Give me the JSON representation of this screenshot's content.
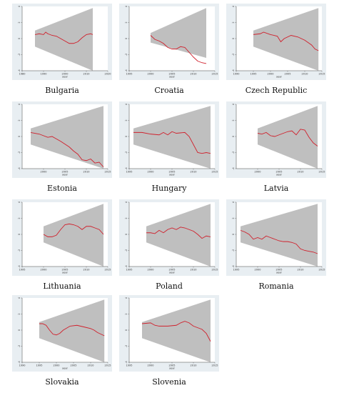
{
  "colors": {
    "band": "#bfbfbf",
    "line": "#d0202c",
    "frame_bg": "#e8eef2"
  },
  "chart_data": [
    {
      "type": "line",
      "title": "Bulgaria",
      "xlabel": "year",
      "xlim": [
        1980,
        2020
      ],
      "xticks": [
        1980,
        1990,
        2000,
        2010,
        2020
      ],
      "ylim": [
        -4,
        4
      ],
      "yticks": [
        -4,
        -2,
        0,
        2,
        4
      ],
      "band": {
        "x": [
          1986,
          2013
        ],
        "lower_start": -1.0,
        "lower_end": -4.0,
        "upper_start": 1.0,
        "upper_end": 3.8
      },
      "series": [
        {
          "x": [
            1986,
            1988,
            1990,
            1991,
            1992,
            1994,
            1996,
            1998,
            2000,
            2002,
            2004,
            2006,
            2008,
            2010,
            2012,
            2013
          ],
          "values": [
            0.5,
            0.6,
            0.5,
            0.8,
            0.6,
            0.4,
            0.3,
            0.0,
            -0.3,
            -0.6,
            -0.6,
            -0.4,
            0.1,
            0.5,
            0.6,
            0.5
          ]
        }
      ]
    },
    {
      "type": "line",
      "title": "Croatia",
      "xlabel": "year",
      "xlim": [
        1995,
        2015
      ],
      "xticks": [
        1995,
        2000,
        2005,
        2010,
        2015
      ],
      "ylim": [
        -4,
        4
      ],
      "yticks": [
        -4,
        -2,
        0,
        2,
        4
      ],
      "band": {
        "x": [
          2000,
          2013
        ],
        "lower_start": -0.5,
        "lower_end": -2.4,
        "upper_start": 0.7,
        "upper_end": 3.8
      },
      "series": [
        {
          "x": [
            2000,
            2001,
            2002,
            2003,
            2004,
            2005,
            2006,
            2007,
            2008,
            2009,
            2010,
            2011,
            2012,
            2013
          ],
          "values": [
            0.4,
            -0.1,
            -0.3,
            -0.6,
            -1.1,
            -1.3,
            -1.3,
            -1.0,
            -1.1,
            -1.7,
            -2.3,
            -2.8,
            -3.0,
            -3.1
          ]
        }
      ]
    },
    {
      "type": "line",
      "title": "Czech Republic",
      "xlabel": "year",
      "xlim": [
        1990,
        2015
      ],
      "xticks": [
        1990,
        1995,
        2000,
        2005,
        2010,
        2015
      ],
      "ylim": [
        -4,
        4
      ],
      "yticks": [
        -4,
        -2,
        0,
        2,
        4
      ],
      "band": {
        "x": [
          1995,
          2014
        ],
        "lower_start": -1.0,
        "lower_end": -4.0,
        "upper_start": 1.0,
        "upper_end": 3.8
      },
      "series": [
        {
          "x": [
            1995,
            1997,
            1998,
            2000,
            2002,
            2003,
            2004,
            2006,
            2008,
            2010,
            2012,
            2013,
            2014
          ],
          "values": [
            0.5,
            0.6,
            0.8,
            0.5,
            0.3,
            -0.4,
            0.0,
            0.4,
            0.2,
            -0.2,
            -0.8,
            -1.3,
            -1.5
          ]
        }
      ]
    },
    {
      "type": "line",
      "title": "Estonia",
      "xlabel": "year",
      "xlim": [
        1995,
        2015
      ],
      "xticks": [
        2000,
        2005,
        2010,
        2015
      ],
      "ylim": [
        -4,
        4
      ],
      "yticks": [
        -4,
        -2,
        0,
        2,
        4
      ],
      "band": {
        "x": [
          1997,
          2014
        ],
        "lower_start": -1.0,
        "lower_end": -4.0,
        "upper_start": 1.0,
        "upper_end": 3.8
      },
      "series": [
        {
          "x": [
            1997,
            1999,
            2001,
            2002,
            2003,
            2004,
            2006,
            2007,
            2008,
            2009,
            2010,
            2011,
            2012,
            2013,
            2014
          ],
          "values": [
            0.5,
            0.3,
            -0.1,
            0.0,
            -0.3,
            -0.6,
            -1.3,
            -1.8,
            -2.2,
            -2.9,
            -3.0,
            -2.8,
            -3.3,
            -3.2,
            -3.8
          ]
        }
      ]
    },
    {
      "type": "line",
      "title": "Hungary",
      "xlabel": "year",
      "xlim": [
        1995,
        2015
      ],
      "xticks": [
        1995,
        2000,
        2005,
        2010,
        2015
      ],
      "ylim": [
        -4,
        4
      ],
      "yticks": [
        -4,
        -2,
        0,
        2,
        4
      ],
      "band": {
        "x": [
          1996,
          2014
        ],
        "lower_start": -1.0,
        "lower_end": -4.0,
        "upper_start": 1.0,
        "upper_end": 3.8
      },
      "series": [
        {
          "x": [
            1996,
            1998,
            2000,
            2002,
            2003,
            2004,
            2005,
            2006,
            2008,
            2009,
            2010,
            2011,
            2012,
            2013,
            2014
          ],
          "values": [
            0.5,
            0.5,
            0.3,
            0.2,
            0.5,
            0.2,
            0.6,
            0.4,
            0.5,
            0.0,
            -1.0,
            -2.0,
            -2.1,
            -2.0,
            -2.1
          ]
        }
      ]
    },
    {
      "type": "line",
      "title": "Latvia",
      "xlabel": "year",
      "xlim": [
        1995,
        2015
      ],
      "xticks": [
        2000,
        2005,
        2010,
        2015
      ],
      "ylim": [
        -4,
        4
      ],
      "yticks": [
        -4,
        -2,
        0,
        2,
        4
      ],
      "band": {
        "x": [
          2000,
          2014
        ],
        "lower_start": -1.0,
        "lower_end": -4.0,
        "upper_start": 1.0,
        "upper_end": 3.8
      },
      "series": [
        {
          "x": [
            2000,
            2001,
            2002,
            2003,
            2004,
            2005,
            2006,
            2007,
            2008,
            2009,
            2010,
            2011,
            2012,
            2013,
            2014
          ],
          "values": [
            0.4,
            0.3,
            0.5,
            0.1,
            0.0,
            0.2,
            0.4,
            0.6,
            0.7,
            0.2,
            0.9,
            0.8,
            -0.1,
            -0.8,
            -1.2
          ]
        }
      ]
    },
    {
      "type": "line",
      "title": "Lithuania",
      "xlabel": "year",
      "xlim": [
        1995,
        2015
      ],
      "xticks": [
        1995,
        2000,
        2005,
        2010,
        2015
      ],
      "ylim": [
        -4,
        4
      ],
      "yticks": [
        -4,
        -2,
        0,
        2,
        4
      ],
      "band": {
        "x": [
          2000,
          2014
        ],
        "lower_start": -1.0,
        "lower_end": -4.0,
        "upper_start": 1.0,
        "upper_end": 3.8
      },
      "series": [
        {
          "x": [
            2000,
            2001,
            2002,
            2003,
            2004,
            2005,
            2006,
            2007,
            2008,
            2009,
            2010,
            2011,
            2012,
            2013,
            2014
          ],
          "values": [
            0.0,
            -0.3,
            -0.3,
            -0.1,
            0.6,
            1.2,
            1.3,
            1.2,
            1.0,
            0.6,
            1.0,
            1.0,
            0.8,
            0.6,
            0.0
          ]
        }
      ]
    },
    {
      "type": "line",
      "title": "Poland",
      "xlabel": "year",
      "xlim": [
        1995,
        2015
      ],
      "xticks": [
        1995,
        2000,
        2005,
        2010,
        2015
      ],
      "ylim": [
        -4,
        4
      ],
      "yticks": [
        -4,
        -2,
        0,
        2,
        4
      ],
      "band": {
        "x": [
          1999,
          2014
        ],
        "lower_start": -1.0,
        "lower_end": -4.0,
        "upper_start": 1.0,
        "upper_end": 3.8
      },
      "series": [
        {
          "x": [
            1999,
            2000,
            2001,
            2002,
            2003,
            2004,
            2005,
            2006,
            2007,
            2008,
            2009,
            2010,
            2011,
            2012,
            2013,
            2014
          ],
          "values": [
            0.2,
            0.2,
            0.1,
            0.5,
            0.2,
            0.6,
            0.8,
            0.6,
            0.9,
            0.8,
            0.6,
            0.4,
            0.0,
            -0.5,
            -0.2,
            -0.3
          ]
        }
      ]
    },
    {
      "type": "line",
      "title": "Romania",
      "xlabel": "year",
      "xlim": [
        1995,
        2015
      ],
      "xticks": [
        1995,
        2000,
        2005,
        2010,
        2015
      ],
      "ylim": [
        -4,
        4
      ],
      "yticks": [
        -4,
        -2,
        0,
        2,
        4
      ],
      "band": {
        "x": [
          1996,
          2014
        ],
        "lower_start": -1.0,
        "lower_end": -4.0,
        "upper_start": 1.0,
        "upper_end": 3.8
      },
      "series": [
        {
          "x": [
            1996,
            1997,
            1998,
            1999,
            2000,
            2001,
            2002,
            2003,
            2004,
            2005,
            2006,
            2007,
            2008,
            2009,
            2010,
            2011,
            2012,
            2013,
            2014
          ],
          "values": [
            0.5,
            0.3,
            0.0,
            -0.6,
            -0.4,
            -0.6,
            -0.2,
            -0.4,
            -0.6,
            -0.8,
            -0.9,
            -0.9,
            -1.0,
            -1.2,
            -1.8,
            -2.0,
            -2.1,
            -2.2,
            -2.4
          ]
        }
      ]
    },
    {
      "type": "line",
      "title": "Slovakia",
      "xlabel": "year",
      "xlim": [
        1990,
        2015
      ],
      "xticks": [
        1990,
        1995,
        2000,
        2005,
        2010,
        2015
      ],
      "ylim": [
        -4,
        4
      ],
      "yticks": [
        -4,
        -2,
        0,
        2,
        4
      ],
      "band": {
        "x": [
          1995,
          2014
        ],
        "lower_start": -1.0,
        "lower_end": -4.0,
        "upper_start": 1.0,
        "upper_end": 3.8
      },
      "series": [
        {
          "x": [
            1995,
            1996,
            1997,
            1998,
            1999,
            2000,
            2001,
            2002,
            2004,
            2006,
            2008,
            2010,
            2011,
            2012,
            2013,
            2014
          ],
          "values": [
            0.8,
            0.8,
            0.6,
            0.0,
            -0.5,
            -0.6,
            -0.4,
            0.0,
            0.5,
            0.6,
            0.4,
            0.2,
            0.0,
            -0.3,
            -0.5,
            -0.7
          ]
        }
      ]
    },
    {
      "type": "line",
      "title": "Slovenia",
      "xlabel": "year",
      "xlim": [
        1995,
        2015
      ],
      "xticks": [
        1995,
        2000,
        2005,
        2010,
        2015
      ],
      "ylim": [
        -4,
        4
      ],
      "yticks": [
        -4,
        -2,
        0,
        2,
        4
      ],
      "band": {
        "x": [
          1998,
          2014
        ],
        "lower_start": -1.0,
        "lower_end": -4.0,
        "upper_start": 1.0,
        "upper_end": 3.8
      },
      "series": [
        {
          "x": [
            1998,
            2000,
            2001,
            2002,
            2004,
            2006,
            2007,
            2008,
            2009,
            2010,
            2011,
            2012,
            2013,
            2014
          ],
          "values": [
            0.8,
            0.9,
            0.6,
            0.5,
            0.5,
            0.6,
            0.9,
            1.1,
            0.9,
            0.5,
            0.3,
            0.1,
            -0.4,
            -1.4
          ]
        }
      ]
    }
  ]
}
